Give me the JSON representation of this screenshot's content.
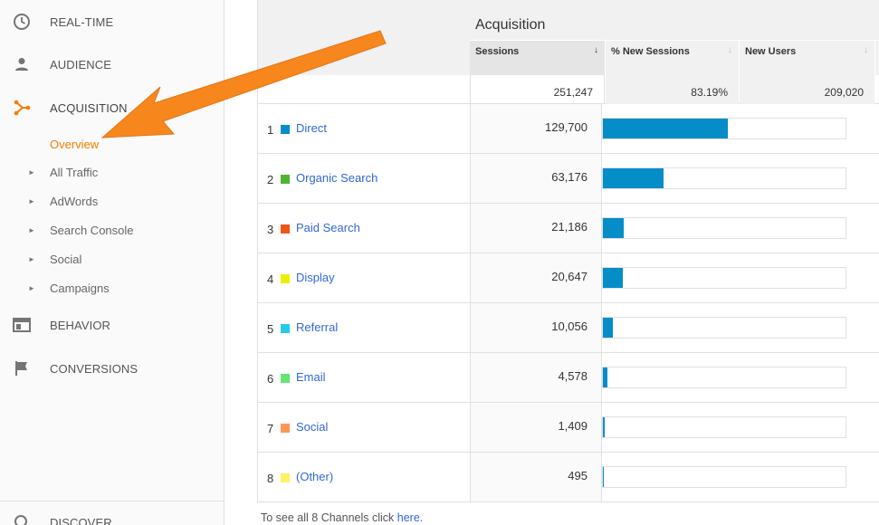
{
  "sidebar": {
    "nav": [
      {
        "label": "REAL-TIME",
        "icon": "clock-icon"
      },
      {
        "label": "AUDIENCE",
        "icon": "person-icon"
      },
      {
        "label": "ACQUISITION",
        "icon": "acquisition-icon"
      },
      {
        "label": "BEHAVIOR",
        "icon": "behavior-icon"
      },
      {
        "label": "CONVERSIONS",
        "icon": "flag-icon"
      },
      {
        "label": "DISCOVER",
        "icon": "search-icon"
      }
    ],
    "acquisition_sub": [
      {
        "label": "Overview",
        "arrow": ""
      },
      {
        "label": "All Traffic",
        "arrow": "►"
      },
      {
        "label": "AdWords",
        "arrow": "►"
      },
      {
        "label": "Search Console",
        "arrow": "►"
      },
      {
        "label": "Social",
        "arrow": "►"
      },
      {
        "label": "Campaigns",
        "arrow": "►"
      }
    ]
  },
  "table": {
    "group_title": "Acquisition",
    "columns": [
      {
        "label": "Sessions",
        "sort": "↓"
      },
      {
        "label": "% New Sessions",
        "sort": "↓"
      },
      {
        "label": "New Users",
        "sort": "↓"
      }
    ],
    "totals": {
      "sessions": "251,247",
      "new_sessions_pct": "83.19%",
      "new_users": "209,020"
    },
    "rows": [
      {
        "num": "1",
        "channel": "Direct",
        "sessions": "129,700",
        "share": 0.516,
        "color": "#058dc7"
      },
      {
        "num": "2",
        "channel": "Organic Search",
        "sessions": "63,176",
        "share": 0.251,
        "color": "#50b432"
      },
      {
        "num": "3",
        "channel": "Paid Search",
        "sessions": "21,186",
        "share": 0.084,
        "color": "#ed561b"
      },
      {
        "num": "4",
        "channel": "Display",
        "sessions": "20,647",
        "share": 0.082,
        "color": "#edef00"
      },
      {
        "num": "5",
        "channel": "Referral",
        "sessions": "10,056",
        "share": 0.04,
        "color": "#24cbe5"
      },
      {
        "num": "6",
        "channel": "Email",
        "sessions": "4,578",
        "share": 0.018,
        "color": "#64e572"
      },
      {
        "num": "7",
        "channel": "Social",
        "sessions": "1,409",
        "share": 0.006,
        "color": "#ff9655"
      },
      {
        "num": "8",
        "channel": "(Other)",
        "sessions": "495",
        "share": 0.002,
        "color": "#fff263"
      }
    ]
  },
  "footnote": {
    "text": "To see all 8 Channels click ",
    "link": "here."
  },
  "colors": {
    "accent": "#f57c00",
    "link": "#3367d6",
    "bar": "#058dc7",
    "arrow": "#f7861c"
  }
}
